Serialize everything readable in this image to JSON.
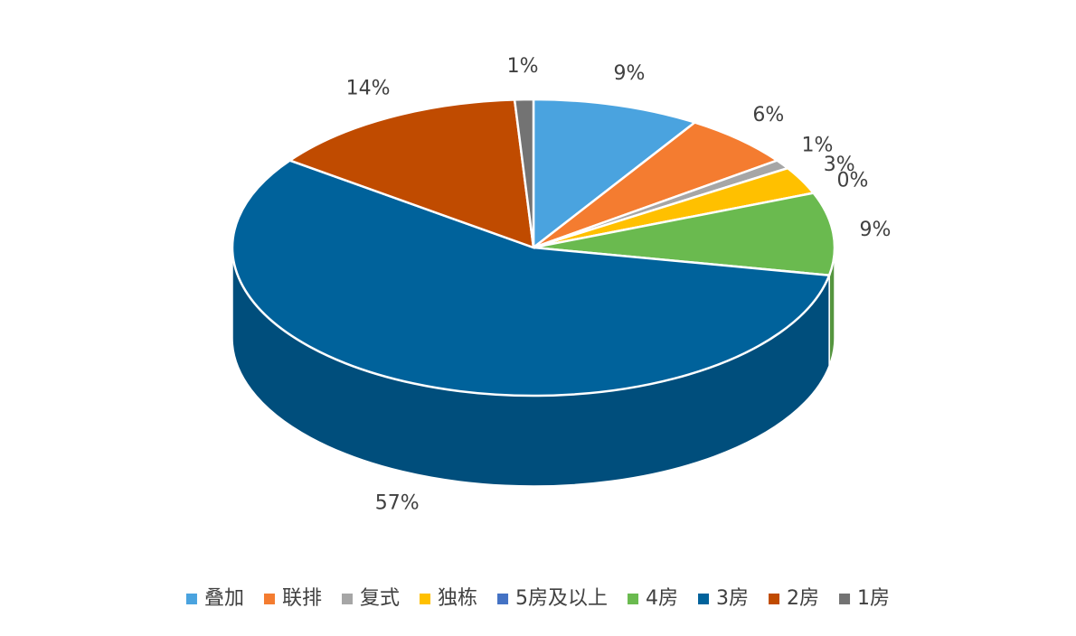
{
  "chart_data": {
    "type": "pie3d",
    "categories": [
      "叠加",
      "联排",
      "复式",
      "独栋",
      "5房及以上",
      "4房",
      "3房",
      "2房",
      "1房"
    ],
    "values": [
      9,
      6,
      1,
      3,
      0,
      9,
      57,
      14,
      1
    ],
    "value_labels": [
      "9%",
      "6%",
      "1%",
      "3%",
      "0%",
      "9%",
      "57%",
      "14%",
      "1%"
    ],
    "colors": [
      "#4aa3df",
      "#f47c30",
      "#a6a6a6",
      "#ffc000",
      "#4472c4",
      "#6aba4f",
      "#00629b",
      "#c04b00",
      "#737373"
    ],
    "legend": "bottom"
  }
}
